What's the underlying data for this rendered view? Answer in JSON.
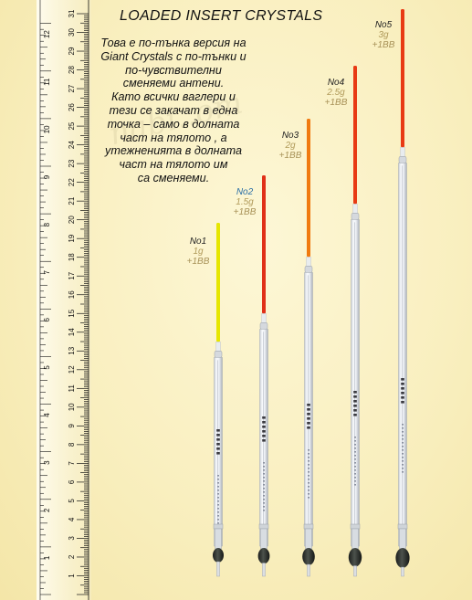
{
  "title": "LOADED INSERT CRYSTALS",
  "description_lines": [
    "Това е по-тънка версия на",
    "Giant Crystals с по-тънки и",
    "по-чувствителни",
    "сменяеми антени.",
    "Като всички ваглери и",
    "тези се закачат в една",
    "точка – само в долната",
    "част на тялото , а",
    "утежненията в долната",
    "част на тялото им",
    "са сменяеми."
  ],
  "ruler": {
    "cm_labels": [
      "1",
      "2",
      "3",
      "4",
      "5",
      "6",
      "7",
      "8",
      "9",
      "10",
      "11",
      "12",
      "13",
      "14",
      "15",
      "16",
      "17",
      "18",
      "19",
      "20",
      "21",
      "22",
      "23",
      "24",
      "25",
      "26",
      "27",
      "28",
      "29",
      "30",
      "31"
    ],
    "inch_labels": [
      "1",
      "2",
      "3",
      "4",
      "5",
      "6",
      "7",
      "8",
      "9",
      "10",
      "11",
      "12"
    ],
    "color": "#111111"
  },
  "floats": [
    {
      "no_label": "No1",
      "weight": "1g",
      "shot": "+1BB",
      "tip_color": "#e6e600",
      "tip_length_cm": 3.1
    },
    {
      "no_label": "No2",
      "weight": "1.5g",
      "shot": "+1BB",
      "tip_color": "#e03018",
      "tip_length_cm": 3.6
    },
    {
      "no_label": "No3",
      "weight": "2g",
      "shot": "+1BB",
      "tip_color": "#f07a10",
      "tip_length_cm": 3.6
    },
    {
      "no_label": "No4",
      "weight": "2.5g",
      "shot": "+1BB",
      "tip_color": "#e83a14",
      "tip_length_cm": 3.6
    },
    {
      "no_label": "No5",
      "weight": "3g",
      "shot": "+1BB",
      "tip_color": "#e83a14",
      "tip_length_cm": 3.6
    }
  ]
}
